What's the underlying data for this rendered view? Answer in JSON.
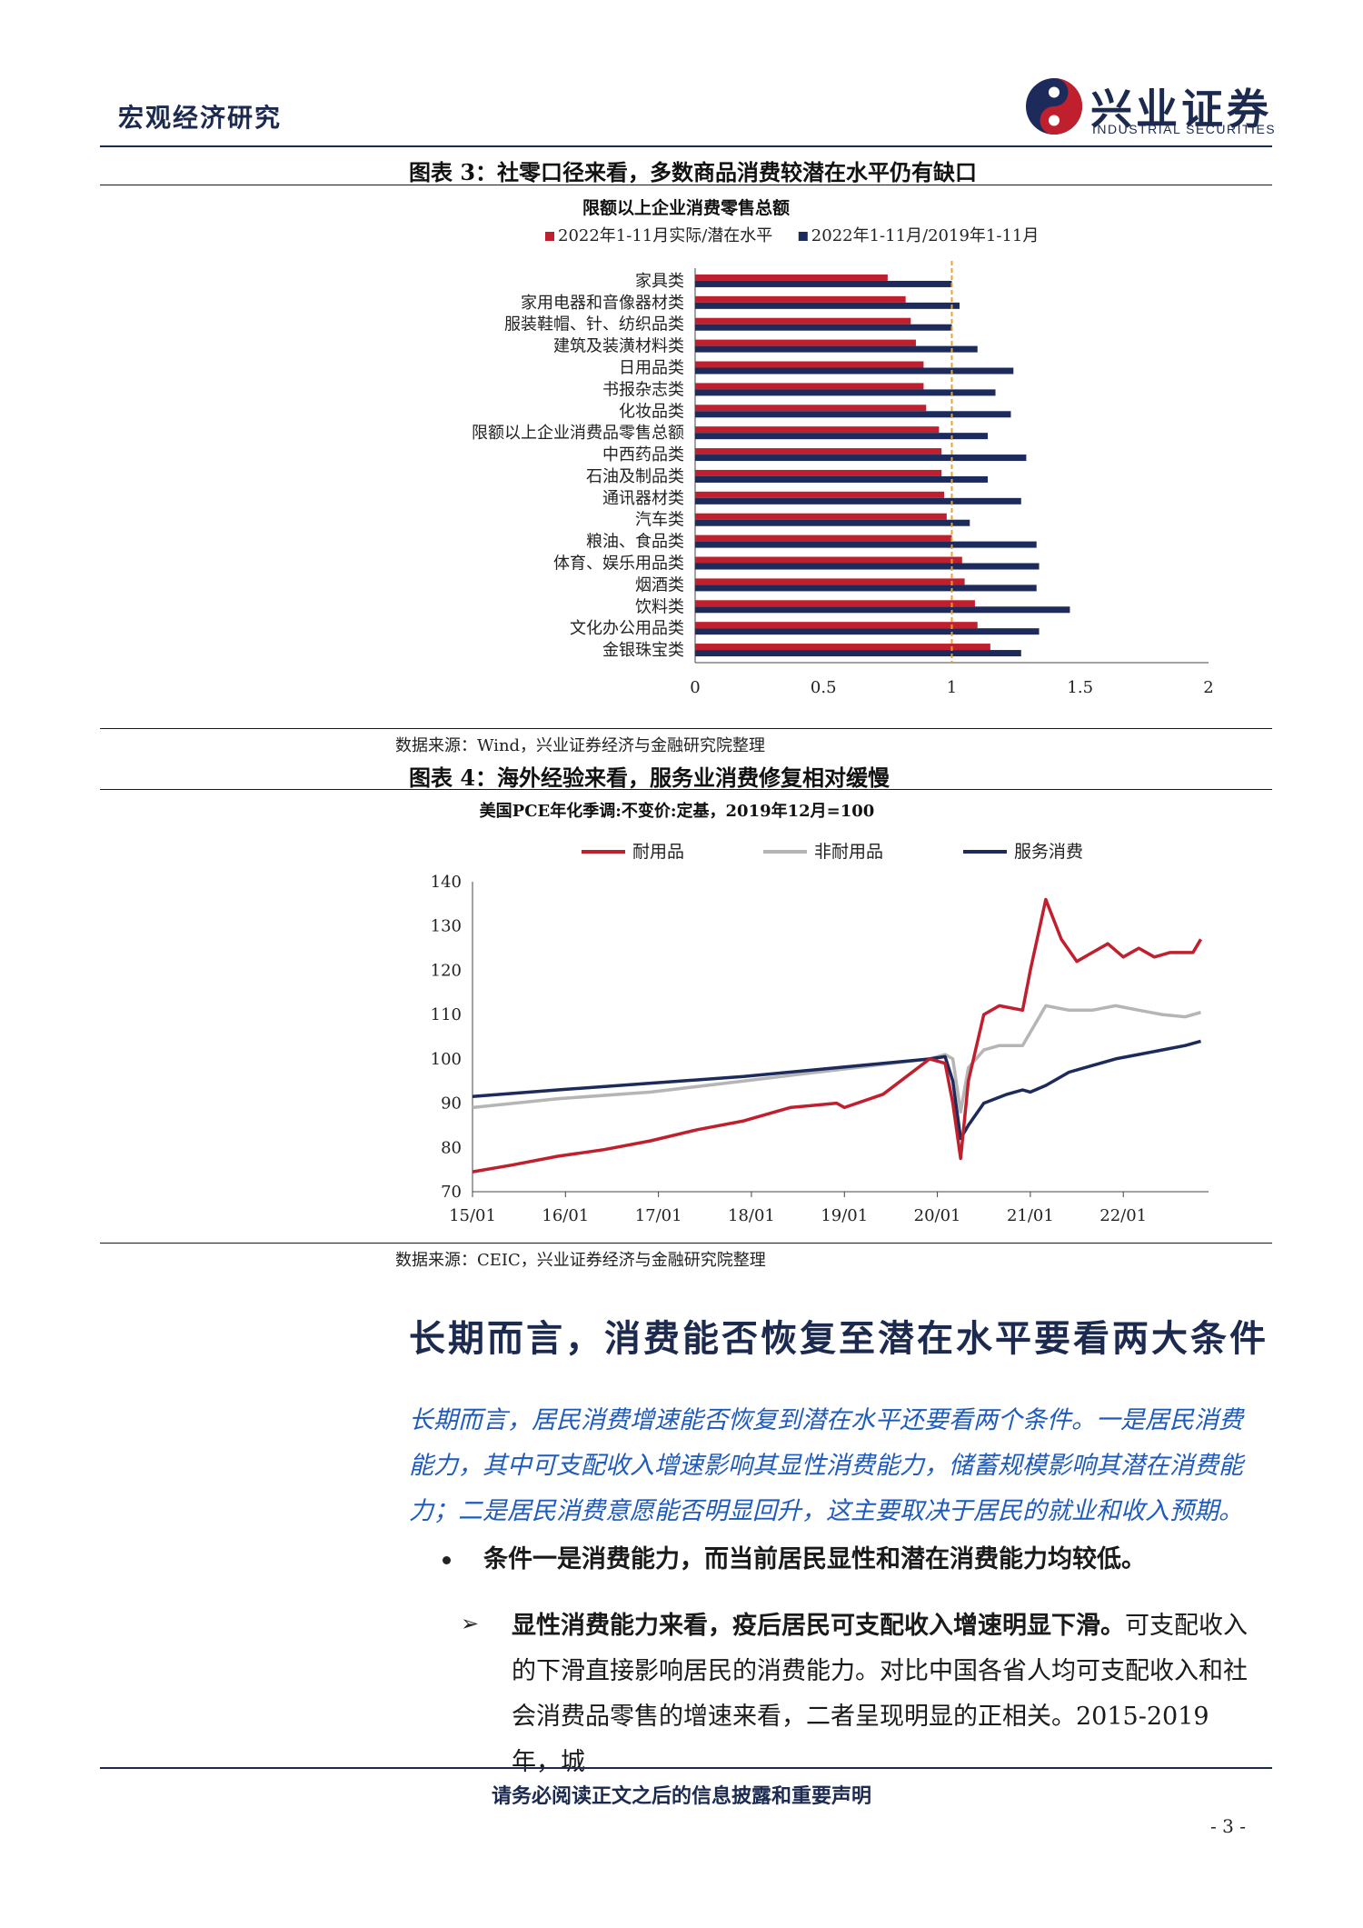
{
  "header": {
    "section": "宏观经济研究",
    "logo_cn": "兴业证券",
    "logo_en": "INDUSTRIAL SECURITIES"
  },
  "figure3": {
    "title": "图表 3：社零口径来看，多数商品消费较潜在水平仍有缺口",
    "source": "数据来源：Wind，兴业证券经济与金融研究院整理"
  },
  "figure4": {
    "title": "图表 4：海外经验来看，服务业消费修复相对缓慢",
    "source": "数据来源：CEIC，兴业证券经济与金融研究院整理"
  },
  "chart_data": [
    {
      "type": "bar",
      "orientation": "horizontal",
      "title": "限额以上企业消费零售总额",
      "categories": [
        "家具类",
        "家用电器和音像器材类",
        "服装鞋帽、针、纺织品类",
        "建筑及装潢材料类",
        "日用品类",
        "书报杂志类",
        "化妆品类",
        "限额以上企业消费品零售总额",
        "中西药品类",
        "石油及制品类",
        "通讯器材类",
        "汽车类",
        "粮油、食品类",
        "体育、娱乐用品类",
        "烟酒类",
        "饮料类",
        "文化办公用品类",
        "金银珠宝类"
      ],
      "series": [
        {
          "name": "2022年1-11月实际/潜在水平",
          "color": "#c0202e",
          "values": [
            0.75,
            0.82,
            0.84,
            0.86,
            0.89,
            0.89,
            0.9,
            0.95,
            0.96,
            0.96,
            0.97,
            0.98,
            1.0,
            1.04,
            1.05,
            1.09,
            1.1,
            1.15
          ]
        },
        {
          "name": "2022年1-11月/2019年1-11月",
          "color": "#1c2a5c",
          "values": [
            1.0,
            1.03,
            1.0,
            1.1,
            1.24,
            1.17,
            1.23,
            1.14,
            1.29,
            1.14,
            1.27,
            1.07,
            1.33,
            1.34,
            1.33,
            1.46,
            1.34,
            1.27
          ]
        }
      ],
      "xlim": [
        0,
        2
      ],
      "xticks": [
        "0",
        "0.5",
        "1",
        "1.5",
        "2"
      ],
      "reference_line": 1,
      "legend_position": "top"
    },
    {
      "type": "line",
      "title": "美国PCE年化季调:不变价:定基，2019年12月=100",
      "xticks": [
        "15/01",
        "16/01",
        "17/01",
        "18/01",
        "19/01",
        "20/01",
        "21/01",
        "22/01"
      ],
      "yticks": [
        "70",
        "80",
        "90",
        "100",
        "110",
        "120",
        "130",
        "140"
      ],
      "ylim": [
        70,
        140
      ],
      "x_range": [
        "2015-01",
        "2022-11"
      ],
      "legend_position": "top",
      "series": [
        {
          "name": "耐用品",
          "color": "#c0202e",
          "points": [
            [
              "2015-01",
              74.5
            ],
            [
              "2015-06",
              76
            ],
            [
              "2015-12",
              78
            ],
            [
              "2016-06",
              79.5
            ],
            [
              "2016-12",
              81.5
            ],
            [
              "2017-06",
              84
            ],
            [
              "2017-12",
              86
            ],
            [
              "2018-06",
              89
            ],
            [
              "2018-12",
              90
            ],
            [
              "2019-01",
              89
            ],
            [
              "2019-06",
              92
            ],
            [
              "2019-12",
              100
            ],
            [
              "2020-02",
              99
            ],
            [
              "2020-03",
              90
            ],
            [
              "2020-04",
              77.5
            ],
            [
              "2020-05",
              95
            ],
            [
              "2020-07",
              110
            ],
            [
              "2020-09",
              112
            ],
            [
              "2020-12",
              111
            ],
            [
              "2021-01",
              120
            ],
            [
              "2021-03",
              136
            ],
            [
              "2021-05",
              127
            ],
            [
              "2021-07",
              122
            ],
            [
              "2021-09",
              124
            ],
            [
              "2021-11",
              126
            ],
            [
              "2022-01",
              123
            ],
            [
              "2022-03",
              125
            ],
            [
              "2022-05",
              123
            ],
            [
              "2022-07",
              124
            ],
            [
              "2022-10",
              124
            ],
            [
              "2022-11",
              127
            ]
          ]
        },
        {
          "name": "非耐用品",
          "color": "#b5b5b5",
          "points": [
            [
              "2015-01",
              89
            ],
            [
              "2015-12",
              91
            ],
            [
              "2016-12",
              92.5
            ],
            [
              "2017-12",
              95
            ],
            [
              "2018-12",
              97.5
            ],
            [
              "2019-12",
              100
            ],
            [
              "2020-02",
              101
            ],
            [
              "2020-03",
              100
            ],
            [
              "2020-04",
              88
            ],
            [
              "2020-05",
              98
            ],
            [
              "2020-07",
              102
            ],
            [
              "2020-09",
              103
            ],
            [
              "2020-12",
              103
            ],
            [
              "2021-01",
              106
            ],
            [
              "2021-03",
              112
            ],
            [
              "2021-06",
              111
            ],
            [
              "2021-09",
              111
            ],
            [
              "2021-12",
              112
            ],
            [
              "2022-03",
              111
            ],
            [
              "2022-06",
              110
            ],
            [
              "2022-09",
              109.5
            ],
            [
              "2022-11",
              110.5
            ]
          ]
        },
        {
          "name": "服务消费",
          "color": "#1c2a5c",
          "points": [
            [
              "2015-01",
              91.5
            ],
            [
              "2015-12",
              93
            ],
            [
              "2016-12",
              94.5
            ],
            [
              "2017-12",
              96
            ],
            [
              "2018-12",
              98
            ],
            [
              "2019-12",
              100
            ],
            [
              "2020-02",
              100.5
            ],
            [
              "2020-03",
              95
            ],
            [
              "2020-04",
              82
            ],
            [
              "2020-05",
              85
            ],
            [
              "2020-07",
              90
            ],
            [
              "2020-10",
              92
            ],
            [
              "2020-12",
              93
            ],
            [
              "2021-01",
              92.5
            ],
            [
              "2021-03",
              94
            ],
            [
              "2021-06",
              97
            ],
            [
              "2021-09",
              98.5
            ],
            [
              "2021-12",
              100
            ],
            [
              "2022-03",
              101
            ],
            [
              "2022-06",
              102
            ],
            [
              "2022-09",
              103
            ],
            [
              "2022-11",
              104
            ]
          ]
        }
      ]
    }
  ],
  "body": {
    "section_title": "长期而言，消费能否恢复至潜在水平要看两大条件",
    "intro": "长期而言，居民消费增速能否恢复到潜在水平还要看两个条件。一是居民消费能力，其中可支配收入增速影响其显性消费能力，储蓄规模影响其潜在消费能力；二是居民消费意愿能否明显回升，这主要取决于居民的就业和收入预期。",
    "bullet": "条件一是消费能力，而当前居民显性和潜在消费能力均较低。",
    "arrow_bold": "显性消费能力来看，疫后居民可支配收入增速明显下滑。",
    "arrow_rest": "可支配收入的下滑直接影响居民的消费能力。对比中国各省人均可支配收入和社会消费品零售的增速来看，二者呈现明显的正相关。2015-2019 年，城"
  },
  "footer": {
    "disclaimer": "请务必阅读正文之后的信息披露和重要声明",
    "page": "- 3 -"
  }
}
